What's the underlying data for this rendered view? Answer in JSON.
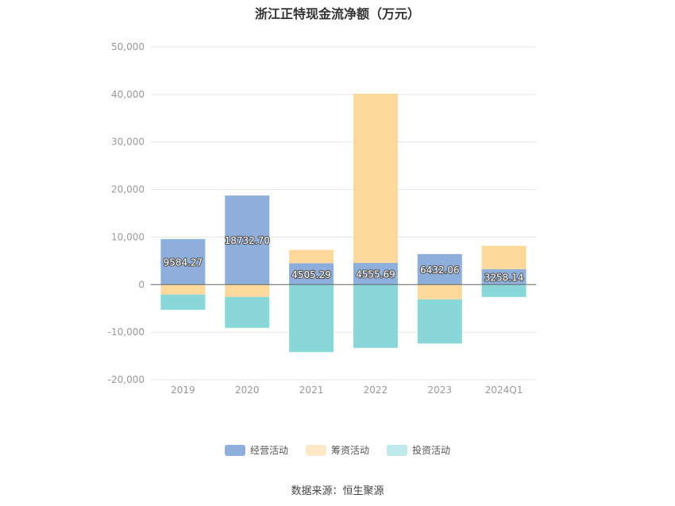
{
  "chart_data": {
    "type": "bar",
    "stacked": true,
    "title": "浙江正特现金流净额（万元）",
    "categories": [
      "2019",
      "2020",
      "2021",
      "2022",
      "2023",
      "2024Q1"
    ],
    "series": [
      {
        "name": "经营活动",
        "color": "#8eaedc",
        "values": [
          9584.27,
          18732.7,
          4505.29,
          4555.69,
          6432.06,
          3258.14
        ]
      },
      {
        "name": "筹资活动",
        "color": "#fdd89c",
        "values": [
          -2100,
          -2600,
          2800,
          35600,
          -3100,
          4900
        ]
      },
      {
        "name": "投资活动",
        "color": "#8ad7d9",
        "values": [
          -3200,
          -6500,
          -14200,
          -13300,
          -9300,
          -2600
        ]
      }
    ],
    "data_labels": [
      "9584.27",
      "18732.70",
      "4505.29",
      "4555.69",
      "6432.06",
      "3258.14"
    ],
    "yticks": [
      "50,000",
      "40,000",
      "30,000",
      "20,000",
      "10,000",
      "0",
      "-10,000",
      "-20,000"
    ],
    "ylim": [
      -20000,
      50000
    ],
    "grid": true,
    "legend_position": "bottom",
    "legend_colors": [
      "#8eaedc",
      "#fde8c8",
      "#bfe9ea"
    ]
  },
  "source": "数据来源：恒生聚源"
}
